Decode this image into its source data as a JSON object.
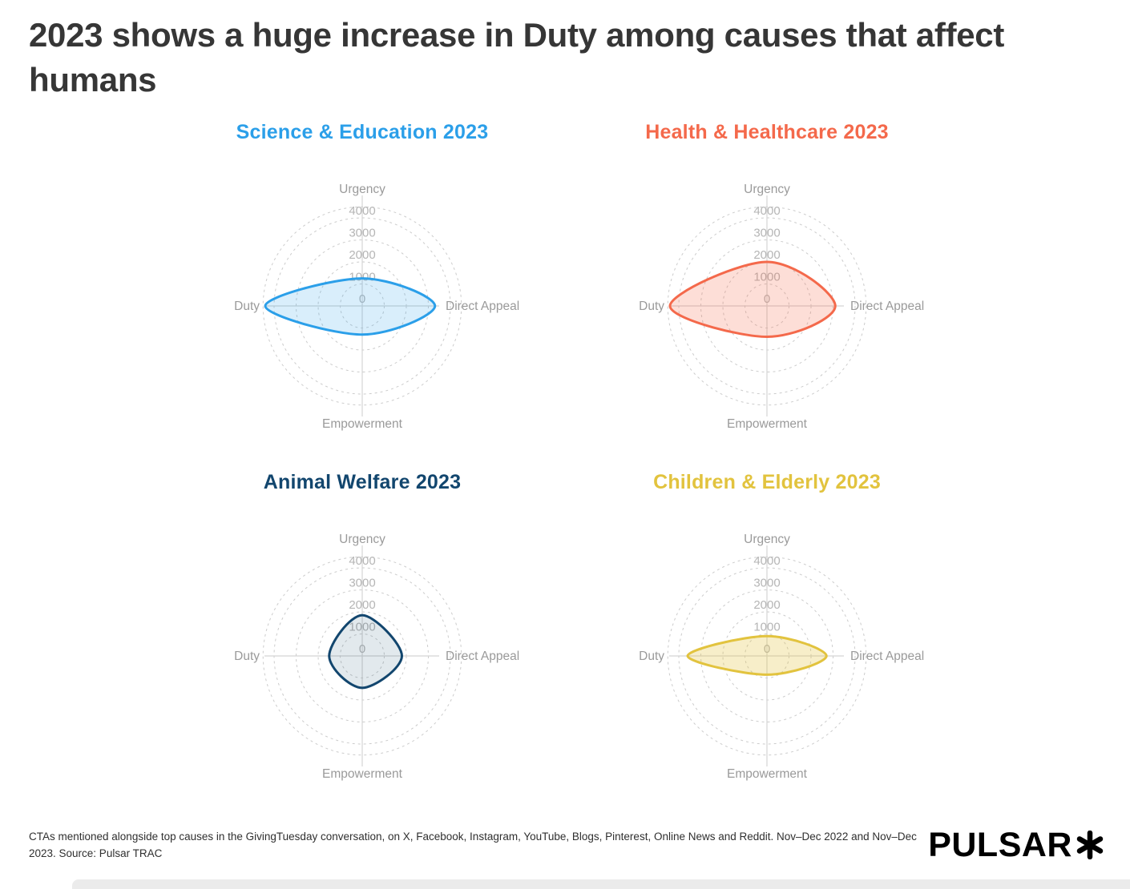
{
  "page": {
    "title": "2023 shows a huge increase in Duty among causes that affect humans",
    "footnote": "CTAs mentioned alongside top causes in the GivingTuesday conversation, on X, Facebook, Instagram, YouTube, Blogs, Pinterest, Online News and Reddit. Nov–Dec 2022 and Nov–Dec 2023. Source: Pulsar TRAC",
    "logo_text": "PULSAR",
    "logo_mark_icon": "asterisk-icon"
  },
  "chart_data": {
    "type": "radar",
    "grid_layout": "2x2",
    "axes": [
      "Urgency",
      "Direct Appeal",
      "Empowerment",
      "Duty"
    ],
    "radial_ticks": [
      0,
      1000,
      2000,
      3000,
      4000
    ],
    "radial_max": 4500,
    "styles": {
      "grid_color": "#cccccc",
      "axis_line_color": "#d4d4d4",
      "axis_label_color": "#9a9a9a",
      "tick_label_color": "#b5b5b5"
    },
    "charts": [
      {
        "title": "Science & Education 2023",
        "color": "#2b9fe9",
        "fill": "rgba(43,159,233,0.18)",
        "values": {
          "Urgency": 1250,
          "Direct Appeal": 3300,
          "Empowerment": 1300,
          "Duty": 4400
        }
      },
      {
        "title": "Health & Healthcare 2023",
        "color": "#f4694b",
        "fill": "rgba(244,105,75,0.22)",
        "values": {
          "Urgency": 2000,
          "Direct Appeal": 3100,
          "Empowerment": 1400,
          "Duty": 4400
        }
      },
      {
        "title": "Animal Welfare 2023",
        "color": "#12466e",
        "fill": "rgba(18,70,110,0.12)",
        "values": {
          "Urgency": 1850,
          "Direct Appeal": 1800,
          "Empowerment": 1450,
          "Duty": 1500
        }
      },
      {
        "title": "Children & Elderly 2023",
        "color": "#e2c33e",
        "fill": "rgba(226,195,62,0.28)",
        "values": {
          "Urgency": 900,
          "Direct Appeal": 2700,
          "Empowerment": 850,
          "Duty": 3600
        }
      }
    ]
  }
}
